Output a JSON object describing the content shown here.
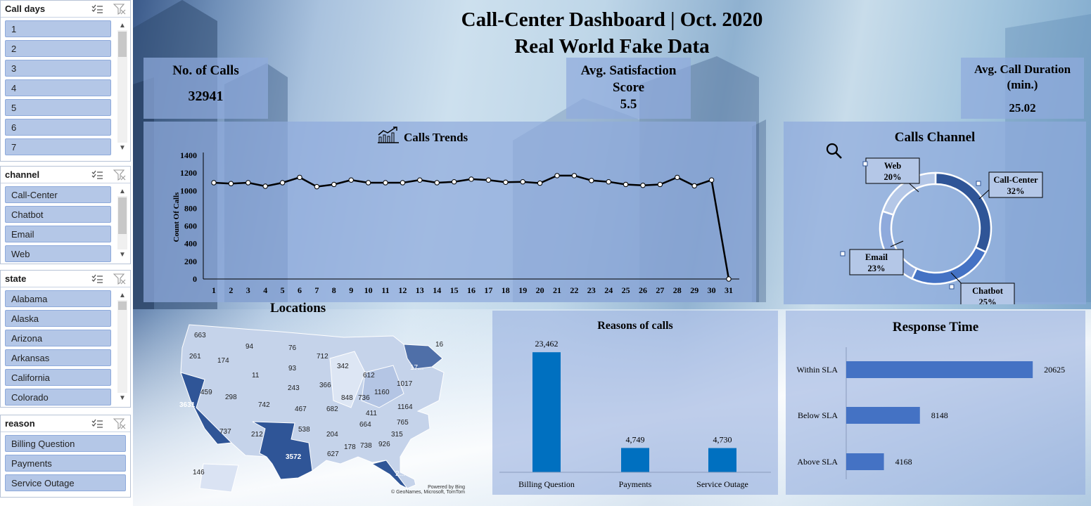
{
  "slicers": {
    "call_days": {
      "title": "Call days",
      "items": [
        "1",
        "2",
        "3",
        "4",
        "5",
        "6",
        "7"
      ]
    },
    "channel": {
      "title": "channel",
      "items": [
        "Call-Center",
        "Chatbot",
        "Email",
        "Web"
      ]
    },
    "state": {
      "title": "state",
      "items": [
        "Alabama",
        "Alaska",
        "Arizona",
        "Arkansas",
        "California",
        "Colorado"
      ]
    },
    "reason": {
      "title": "reason",
      "items": [
        "Billing Question",
        "Payments",
        "Service Outage"
      ]
    }
  },
  "header": {
    "title_line1": "Call-Center Dashboard | Oct. 2020",
    "title_line2": "Real World Fake Data"
  },
  "kpis": {
    "calls": {
      "label": "No. of Calls",
      "value": "32941"
    },
    "satisfaction": {
      "label_line1": "Avg. Satisfaction",
      "label_line2": "Score",
      "value": "5.5"
    },
    "duration": {
      "label_line1": "Avg. Call Duration",
      "label_line2": "(min.)",
      "value": "25.02"
    }
  },
  "colors": {
    "card": "#8faadc",
    "bar": "#0070c0",
    "hbar": "#4472c4",
    "donut": [
      "#2f5597",
      "#4472c4",
      "#8faadc",
      "#b4c7e7"
    ],
    "state_dark": "#2f5597",
    "state_light": "#dae3f3"
  },
  "icons": {
    "trend": "trend-chart-icon",
    "search": "magnifier-icon",
    "multiselect": "multiselect-icon",
    "clear_filter": "clear-filter-icon"
  },
  "chart_data": [
    {
      "type": "line",
      "title": "Calls Trends",
      "ylabel": "Count Of Calls",
      "ylim": [
        0,
        1400
      ],
      "yticks": [
        0,
        200,
        400,
        600,
        800,
        1000,
        1200,
        1400
      ],
      "x": [
        1,
        2,
        3,
        4,
        5,
        6,
        7,
        8,
        9,
        10,
        11,
        12,
        13,
        14,
        15,
        16,
        17,
        18,
        19,
        20,
        21,
        22,
        23,
        24,
        25,
        26,
        27,
        28,
        29,
        30,
        31
      ],
      "values": [
        1090,
        1080,
        1090,
        1050,
        1090,
        1150,
        1045,
        1070,
        1120,
        1090,
        1090,
        1090,
        1120,
        1090,
        1100,
        1130,
        1120,
        1095,
        1100,
        1085,
        1170,
        1170,
        1115,
        1100,
        1070,
        1060,
        1070,
        1150,
        1055,
        1120,
        0
      ],
      "grid": false
    },
    {
      "type": "pie",
      "title": "Calls Channel",
      "labels": [
        "Call-Center",
        "Chatbot",
        "Email",
        "Web"
      ],
      "values": [
        32,
        25,
        23,
        20
      ],
      "value_labels": [
        "32%",
        "25%",
        "23%",
        "20%"
      ]
    },
    {
      "type": "bar",
      "title": "Reasons of calls",
      "categories": [
        "Billing Question",
        "Payments",
        "Service Outage"
      ],
      "values": [
        23462,
        4749,
        4730
      ],
      "value_labels": [
        "23,462",
        "4,749",
        "4,730"
      ],
      "ylim": [
        0,
        25000
      ]
    },
    {
      "type": "bar",
      "orientation": "horizontal",
      "title": "Response Time",
      "categories": [
        "Within SLA",
        "Below SLA",
        "Above SLA"
      ],
      "values": [
        20625,
        8148,
        4168
      ],
      "value_labels": [
        "20625",
        "8148",
        "4168"
      ],
      "xlim": [
        0,
        21000
      ]
    }
  ],
  "map": {
    "title": "Locations",
    "credit_line1": "Powered by Bing",
    "credit_line2": "© GeoNames, Microsoft, TomTom",
    "values": [
      "663",
      "94",
      "76",
      "712",
      "342",
      "16",
      "261",
      "174",
      "11",
      "93",
      "612",
      "17...",
      "459",
      "298",
      "243",
      "366",
      "1160",
      "1017",
      "3631",
      "742",
      "467",
      "682",
      "848",
      "736",
      "411",
      "1164",
      "737",
      "212",
      "538",
      "204",
      "664",
      "765",
      "315",
      "3572",
      "627",
      "178",
      "738",
      "926",
      "2...",
      "146"
    ]
  }
}
